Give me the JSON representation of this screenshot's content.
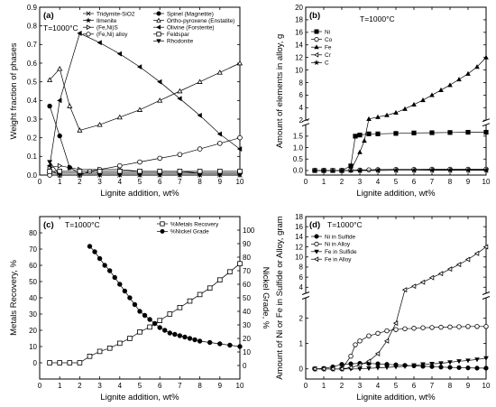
{
  "chart_data": [
    {
      "panel": "(a)",
      "type": "line",
      "note": "T=1000°C",
      "xlabel": "Lignite addition, wt%",
      "ylabel": "Weight fraction of phases",
      "xlim": [
        0,
        10
      ],
      "ylim": [
        0,
        0.9
      ],
      "xticks": [
        0,
        1,
        2,
        3,
        4,
        5,
        6,
        7,
        8,
        9,
        10
      ],
      "yticks": [
        0.0,
        0.1,
        0.2,
        0.3,
        0.4,
        0.5,
        0.6,
        0.7,
        0.8,
        0.9
      ],
      "legend_position": "top",
      "series": [
        {
          "name": "Tridymite-SiO2",
          "marker": "x",
          "x": [
            0.5,
            1,
            2,
            3,
            4,
            5,
            6,
            7,
            8,
            9,
            10
          ],
          "y": [
            0.03,
            0.0,
            0.0,
            0.0,
            0.0,
            0.0,
            0.0,
            0.0,
            0.0,
            0.0,
            0.0
          ]
        },
        {
          "name": "Ilmenite",
          "marker": "star",
          "x": [
            0.5,
            1,
            2,
            3,
            4,
            5,
            6,
            7,
            8,
            9,
            10
          ],
          "y": [
            0.01,
            0.01,
            0.01,
            0.01,
            0.01,
            0.01,
            0.01,
            0.01,
            0.01,
            0.01,
            0.01
          ]
        },
        {
          "name": "(Fe,Ni)S",
          "marker": "triangle-right-open",
          "x": [
            0.5,
            1,
            1.5,
            2,
            3,
            4,
            5,
            6,
            7,
            8,
            9,
            10
          ],
          "y": [
            0.04,
            0.05,
            0.04,
            0.03,
            0.03,
            0.03,
            0.02,
            0.02,
            0.02,
            0.01,
            0.01,
            0.01
          ]
        },
        {
          "name": "(Fe,Ni) alloy",
          "marker": "circle-open",
          "x": [
            0.5,
            1,
            2,
            2.5,
            3,
            4,
            5,
            6,
            7,
            8,
            9,
            10
          ],
          "y": [
            0.0,
            0.0,
            0.0,
            0.02,
            0.03,
            0.05,
            0.07,
            0.09,
            0.11,
            0.14,
            0.17,
            0.2
          ]
        },
        {
          "name": "Spinel (Magnetite)",
          "marker": "circle-filled",
          "x": [
            0.5,
            1,
            1.5,
            2,
            3,
            4,
            5,
            6,
            7,
            8,
            9,
            10
          ],
          "y": [
            0.37,
            0.21,
            0.04,
            0.01,
            0.01,
            0.01,
            0.01,
            0.01,
            0.01,
            0.01,
            0.01,
            0.01
          ]
        },
        {
          "name": "Ortho-pyroxene (Enstatite)",
          "marker": "triangle-open",
          "x": [
            0.5,
            1,
            1.5,
            2,
            3,
            4,
            5,
            6,
            7,
            8,
            9,
            10
          ],
          "y": [
            0.51,
            0.57,
            0.37,
            0.24,
            0.27,
            0.31,
            0.35,
            0.4,
            0.45,
            0.5,
            0.55,
            0.6
          ]
        },
        {
          "name": "Olivine (Forsterite)",
          "marker": "triangle-left-filled",
          "x": [
            0.5,
            1,
            2,
            3,
            4,
            5,
            6,
            7,
            8,
            9,
            10
          ],
          "y": [
            0.05,
            0.4,
            0.76,
            0.71,
            0.65,
            0.58,
            0.5,
            0.41,
            0.32,
            0.22,
            0.14
          ]
        },
        {
          "name": "Feldspar",
          "marker": "square-open-line",
          "x": [
            0.5,
            1,
            2,
            3,
            4,
            5,
            6,
            7,
            8,
            9,
            10
          ],
          "y": [
            0.02,
            0.02,
            0.02,
            0.02,
            0.02,
            0.02,
            0.02,
            0.02,
            0.02,
            0.02,
            0.02
          ]
        },
        {
          "name": "Rhodonite",
          "marker": "triangle-down-filled",
          "x": [
            0.5,
            1,
            2,
            3,
            4,
            5,
            6,
            7,
            8,
            9,
            10
          ],
          "y": [
            0.07,
            0.0,
            0.0,
            0.0,
            0.0,
            0.0,
            0.0,
            0.0,
            0.0,
            0.0,
            0.0
          ]
        }
      ]
    },
    {
      "panel": "(b)",
      "type": "line",
      "note": "T=1000°C",
      "xlabel": "Lignite addition, wt%",
      "ylabel": "Amount of elements in alloy, g",
      "xlim": [
        0,
        10
      ],
      "broken_y_axis": true,
      "lower_ylim": [
        -0.2,
        2.0
      ],
      "upper_ylim": [
        2.0,
        20
      ],
      "lower_yticks": [
        0.0,
        0.5,
        1.0,
        1.5
      ],
      "upper_yticks": [
        2,
        4,
        6,
        8,
        10,
        12,
        14,
        16,
        18,
        20
      ],
      "xticks": [
        0,
        1,
        2,
        3,
        4,
        5,
        6,
        7,
        8,
        9,
        10
      ],
      "legend_position": "top-left",
      "series": [
        {
          "name": "Ni",
          "marker": "square-filled",
          "x": [
            0.5,
            1,
            1.5,
            2,
            2.5,
            2.75,
            3,
            3.5,
            4,
            5,
            6,
            7,
            8,
            9,
            10
          ],
          "y": [
            0.0,
            0.0,
            0.0,
            0.0,
            0.2,
            1.5,
            1.55,
            1.6,
            1.6,
            1.62,
            1.64,
            1.65,
            1.66,
            1.67,
            1.67
          ]
        },
        {
          "name": "Co",
          "marker": "circle-open",
          "x": [
            0.5,
            1,
            1.5,
            2,
            2.5,
            3,
            3.5,
            4,
            5,
            6,
            7,
            8,
            9,
            10
          ],
          "y": [
            0.0,
            0.0,
            0.0,
            0.0,
            0.01,
            0.02,
            0.03,
            0.04,
            0.05,
            0.05,
            0.06,
            0.06,
            0.06,
            0.06
          ]
        },
        {
          "name": "Fe",
          "marker": "triangle-filled",
          "x": [
            0.5,
            1,
            1.5,
            2,
            2.5,
            3,
            3.25,
            3.5,
            4,
            4.5,
            5,
            5.5,
            6,
            6.5,
            7,
            7.5,
            8,
            8.5,
            9,
            9.5,
            10
          ],
          "y": [
            0.0,
            0.0,
            0.0,
            0.0,
            0.0,
            0.8,
            1.3,
            2.2,
            2.5,
            2.8,
            3.2,
            3.8,
            4.5,
            5.2,
            6.0,
            6.8,
            7.6,
            8.5,
            9.4,
            10.5,
            12.0
          ]
        },
        {
          "name": "Cr",
          "marker": "triangle-left-open",
          "x": [
            0.5,
            1,
            2,
            3,
            4,
            5,
            6,
            7,
            8,
            9,
            10
          ],
          "y": [
            0.0,
            0.0,
            0.0,
            0.0,
            0.0,
            0.01,
            0.01,
            0.01,
            0.01,
            0.01,
            0.01
          ]
        },
        {
          "name": "C",
          "marker": "star",
          "x": [
            0.5,
            1,
            2,
            3,
            4,
            5,
            6,
            7,
            8,
            9,
            10
          ],
          "y": [
            0.0,
            0.0,
            0.0,
            0.0,
            0.01,
            0.01,
            0.01,
            0.02,
            0.02,
            0.02,
            0.02
          ]
        }
      ]
    },
    {
      "panel": "(c)",
      "type": "line",
      "note": "T=1000°C",
      "xlabel": "Lignite addition, wt%",
      "ylabel": "Metals Recovery, %",
      "y2label": "Nickel Grade, %",
      "xlim": [
        0,
        10
      ],
      "ylim": [
        -10,
        90
      ],
      "y2lim": [
        -10,
        110
      ],
      "yticks": [
        0,
        10,
        20,
        30,
        40,
        50,
        60,
        70,
        80
      ],
      "y2ticks": [
        0,
        10,
        20,
        30,
        40,
        50,
        60,
        70,
        80,
        90,
        100
      ],
      "xticks": [
        0,
        1,
        2,
        3,
        4,
        5,
        6,
        7,
        8,
        9,
        10
      ],
      "legend_position": "top-right",
      "series": [
        {
          "name": "%Metals Recovery",
          "marker": "square-open",
          "axis": "left",
          "x": [
            0.5,
            1,
            1.5,
            2,
            2.5,
            3,
            3.5,
            4,
            4.5,
            5,
            5.5,
            6,
            6.5,
            7,
            7.5,
            8,
            8.5,
            9,
            9.5,
            10
          ],
          "y": [
            0,
            0,
            0,
            0,
            4,
            7,
            9,
            12,
            15,
            19,
            22,
            26,
            30,
            34,
            38,
            42,
            46,
            51,
            56,
            61
          ]
        },
        {
          "name": "%Nickel Grade",
          "marker": "circle-filled",
          "axis": "right",
          "x": [
            2.5,
            2.75,
            3,
            3.25,
            3.5,
            3.75,
            4,
            4.25,
            4.5,
            4.75,
            5,
            5.25,
            5.5,
            5.75,
            6,
            6.25,
            6.5,
            6.75,
            7,
            7.25,
            7.5,
            7.75,
            8,
            8.5,
            9,
            9.5,
            10
          ],
          "y": [
            88,
            84,
            79,
            74,
            70,
            65,
            60,
            55,
            50,
            45,
            40,
            37,
            34,
            31,
            28,
            26,
            24,
            23,
            22,
            21,
            20,
            19,
            18,
            17,
            16,
            15,
            14
          ]
        }
      ]
    },
    {
      "panel": "(d)",
      "type": "line",
      "note": "T=1000°C",
      "xlabel": "Lignite addition, wt%",
      "ylabel": "Amount of Ni or Fe in Sulfide or Alloy, gram",
      "xlim": [
        0,
        10
      ],
      "broken_y_axis": true,
      "lower_ylim": [
        -0.4,
        2.8
      ],
      "upper_ylim": [
        2.8,
        18
      ],
      "lower_yticks": [
        0,
        1,
        2
      ],
      "upper_yticks": [
        4,
        6,
        8,
        10,
        12,
        14,
        16,
        18
      ],
      "xticks": [
        0,
        1,
        2,
        3,
        4,
        5,
        6,
        7,
        8,
        9,
        10
      ],
      "legend_position": "top-left",
      "series": [
        {
          "name": "Ni in Sulfide",
          "marker": "circle-filled",
          "x": [
            0.5,
            1,
            1.5,
            2,
            2.5,
            3,
            3.5,
            4,
            4.5,
            5,
            5.5,
            6,
            6.5,
            7,
            7.5,
            8,
            8.5,
            9,
            9.5,
            10
          ],
          "y": [
            0.0,
            0.02,
            0.08,
            0.18,
            0.2,
            0.22,
            0.21,
            0.2,
            0.18,
            0.16,
            0.14,
            0.12,
            0.1,
            0.09,
            0.07,
            0.06,
            0.05,
            0.04,
            0.03,
            0.03
          ]
        },
        {
          "name": "Ni in Alloy",
          "marker": "circle-open",
          "x": [
            0.5,
            1,
            1.5,
            2,
            2.5,
            2.75,
            3,
            3.5,
            4,
            4.5,
            5,
            5.5,
            6,
            6.5,
            7,
            7.5,
            8,
            8.5,
            9,
            9.5,
            10
          ],
          "y": [
            0.0,
            0.0,
            0.0,
            0.0,
            0.5,
            0.95,
            1.1,
            1.3,
            1.4,
            1.5,
            1.55,
            1.58,
            1.6,
            1.62,
            1.63,
            1.64,
            1.65,
            1.66,
            1.67,
            1.67,
            1.67
          ]
        },
        {
          "name": "Fe in Sulfide",
          "marker": "triangle-down-filled",
          "x": [
            0.5,
            1,
            1.5,
            2,
            2.5,
            3,
            3.5,
            4,
            4.5,
            5,
            5.5,
            6,
            6.5,
            7,
            7.5,
            8,
            8.5,
            9,
            9.5,
            10
          ],
          "y": [
            0.0,
            0.0,
            0.0,
            0.0,
            0.0,
            0.0,
            0.02,
            0.04,
            0.06,
            0.08,
            0.1,
            0.14,
            0.18,
            0.2,
            0.22,
            0.26,
            0.3,
            0.33,
            0.37,
            0.42
          ]
        },
        {
          "name": "Fe in Alloy",
          "marker": "triangle-left-open",
          "x": [
            0.5,
            1,
            1.5,
            2,
            2.5,
            3,
            3.5,
            4,
            4.5,
            5,
            5.5,
            6,
            6.5,
            7,
            7.5,
            8,
            8.5,
            9,
            9.5,
            10
          ],
          "y": [
            0.0,
            0.0,
            0.0,
            0.0,
            0.05,
            0.15,
            0.3,
            0.6,
            1.1,
            1.8,
            3.5,
            4.2,
            5.0,
            5.9,
            6.7,
            7.6,
            8.5,
            9.5,
            10.7,
            12.0
          ]
        }
      ]
    }
  ]
}
